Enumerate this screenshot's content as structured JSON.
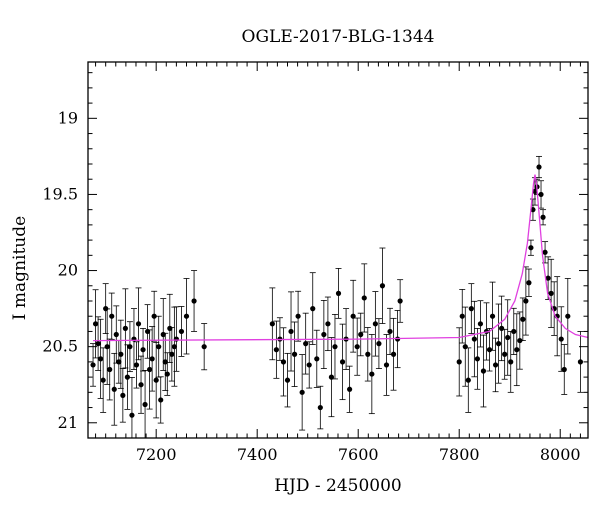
{
  "chart_data": {
    "type": "scatter",
    "title": "OGLE-2017-BLG-1344",
    "xlabel": "HJD - 2450000",
    "ylabel": "I magnitude",
    "xlim": [
      7065,
      8055
    ],
    "ylim": [
      21.1,
      18.63
    ],
    "y_inverted": true,
    "xticks": [
      7200,
      7400,
      7600,
      7800,
      8000
    ],
    "yticks": [
      19,
      19.5,
      20,
      20.5,
      21
    ],
    "xtick_labels": [
      "7200",
      "7400",
      "7600",
      "7800",
      "8000"
    ],
    "ytick_labels": [
      "19",
      "19.5",
      "20",
      "20.5",
      "21"
    ],
    "grid": false,
    "colors": {
      "data": "#000000",
      "model": "#e040e0"
    },
    "model": {
      "name": "",
      "baseline": 20.45,
      "peak_time": 7950,
      "peak_mag": 19.37,
      "x": [
        7075,
        7600,
        7800,
        7860,
        7890,
        7910,
        7925,
        7935,
        7942,
        7947,
        7950,
        7953,
        7958,
        7965,
        7975,
        7990,
        8010,
        8030,
        8055
      ],
      "y": [
        20.46,
        20.45,
        20.44,
        20.4,
        20.32,
        20.2,
        20.02,
        19.82,
        19.6,
        19.43,
        19.37,
        19.43,
        19.62,
        19.9,
        20.15,
        20.3,
        20.38,
        20.42,
        20.44
      ]
    },
    "series": [
      {
        "name": "",
        "x": [
          7075,
          7080,
          7085,
          7090,
          7095,
          7100,
          7103,
          7108,
          7112,
          7117,
          7121,
          7126,
          7130,
          7134,
          7139,
          7143,
          7148,
          7152,
          7156,
          7161,
          7165,
          7170,
          7174,
          7178,
          7183,
          7187,
          7192,
          7196,
          7200,
          7205,
          7209,
          7214,
          7218,
          7222,
          7227,
          7231,
          7236,
          7240,
          7250,
          7260,
          7275,
          7295,
          7430,
          7438,
          7445,
          7452,
          7460,
          7467,
          7474,
          7481,
          7489,
          7496,
          7503,
          7510,
          7518,
          7525,
          7532,
          7540,
          7547,
          7554,
          7561,
          7569,
          7576,
          7583,
          7590,
          7598,
          7605,
          7612,
          7619,
          7627,
          7634,
          7641,
          7648,
          7656,
          7663,
          7670,
          7678,
          7683,
          7800,
          7806,
          7812,
          7818,
          7824,
          7830,
          7836,
          7842,
          7848,
          7854,
          7860,
          7866,
          7872,
          7878,
          7884,
          7890,
          7896,
          7902,
          7908,
          7914,
          7920,
          7926,
          7932,
          7938,
          7942,
          7946,
          7950,
          7954,
          7958,
          7962,
          7966,
          7970,
          7976,
          7982,
          7988,
          7994,
          8002,
          8008,
          8015,
          8040
        ],
        "y": [
          20.62,
          20.35,
          20.48,
          20.58,
          20.72,
          20.25,
          20.5,
          20.65,
          20.3,
          20.78,
          20.42,
          20.6,
          20.55,
          20.82,
          20.38,
          20.7,
          20.5,
          20.95,
          20.45,
          20.62,
          20.35,
          20.75,
          20.52,
          20.88,
          20.4,
          20.65,
          20.58,
          20.3,
          20.72,
          20.5,
          20.85,
          20.42,
          20.6,
          20.68,
          20.38,
          20.55,
          20.5,
          20.45,
          20.4,
          20.3,
          20.2,
          20.5,
          20.35,
          20.52,
          20.45,
          20.6,
          20.72,
          20.4,
          20.55,
          20.3,
          20.8,
          20.48,
          20.62,
          20.25,
          20.58,
          20.9,
          20.42,
          20.35,
          20.7,
          20.5,
          20.15,
          20.6,
          20.45,
          20.78,
          20.3,
          20.5,
          20.42,
          20.18,
          20.55,
          20.68,
          20.35,
          20.48,
          20.1,
          20.62,
          20.4,
          20.55,
          20.45,
          20.2,
          20.6,
          20.3,
          20.5,
          20.72,
          20.25,
          20.45,
          20.58,
          20.35,
          20.66,
          20.4,
          20.52,
          20.3,
          20.62,
          20.48,
          20.38,
          20.55,
          20.44,
          20.6,
          20.4,
          20.52,
          20.46,
          20.32,
          20.2,
          20.08,
          19.85,
          19.6,
          19.48,
          19.45,
          19.32,
          19.5,
          19.65,
          19.88,
          20.05,
          20.15,
          20.25,
          20.3,
          20.45,
          20.65,
          20.3,
          20.6
        ]
      }
    ]
  }
}
